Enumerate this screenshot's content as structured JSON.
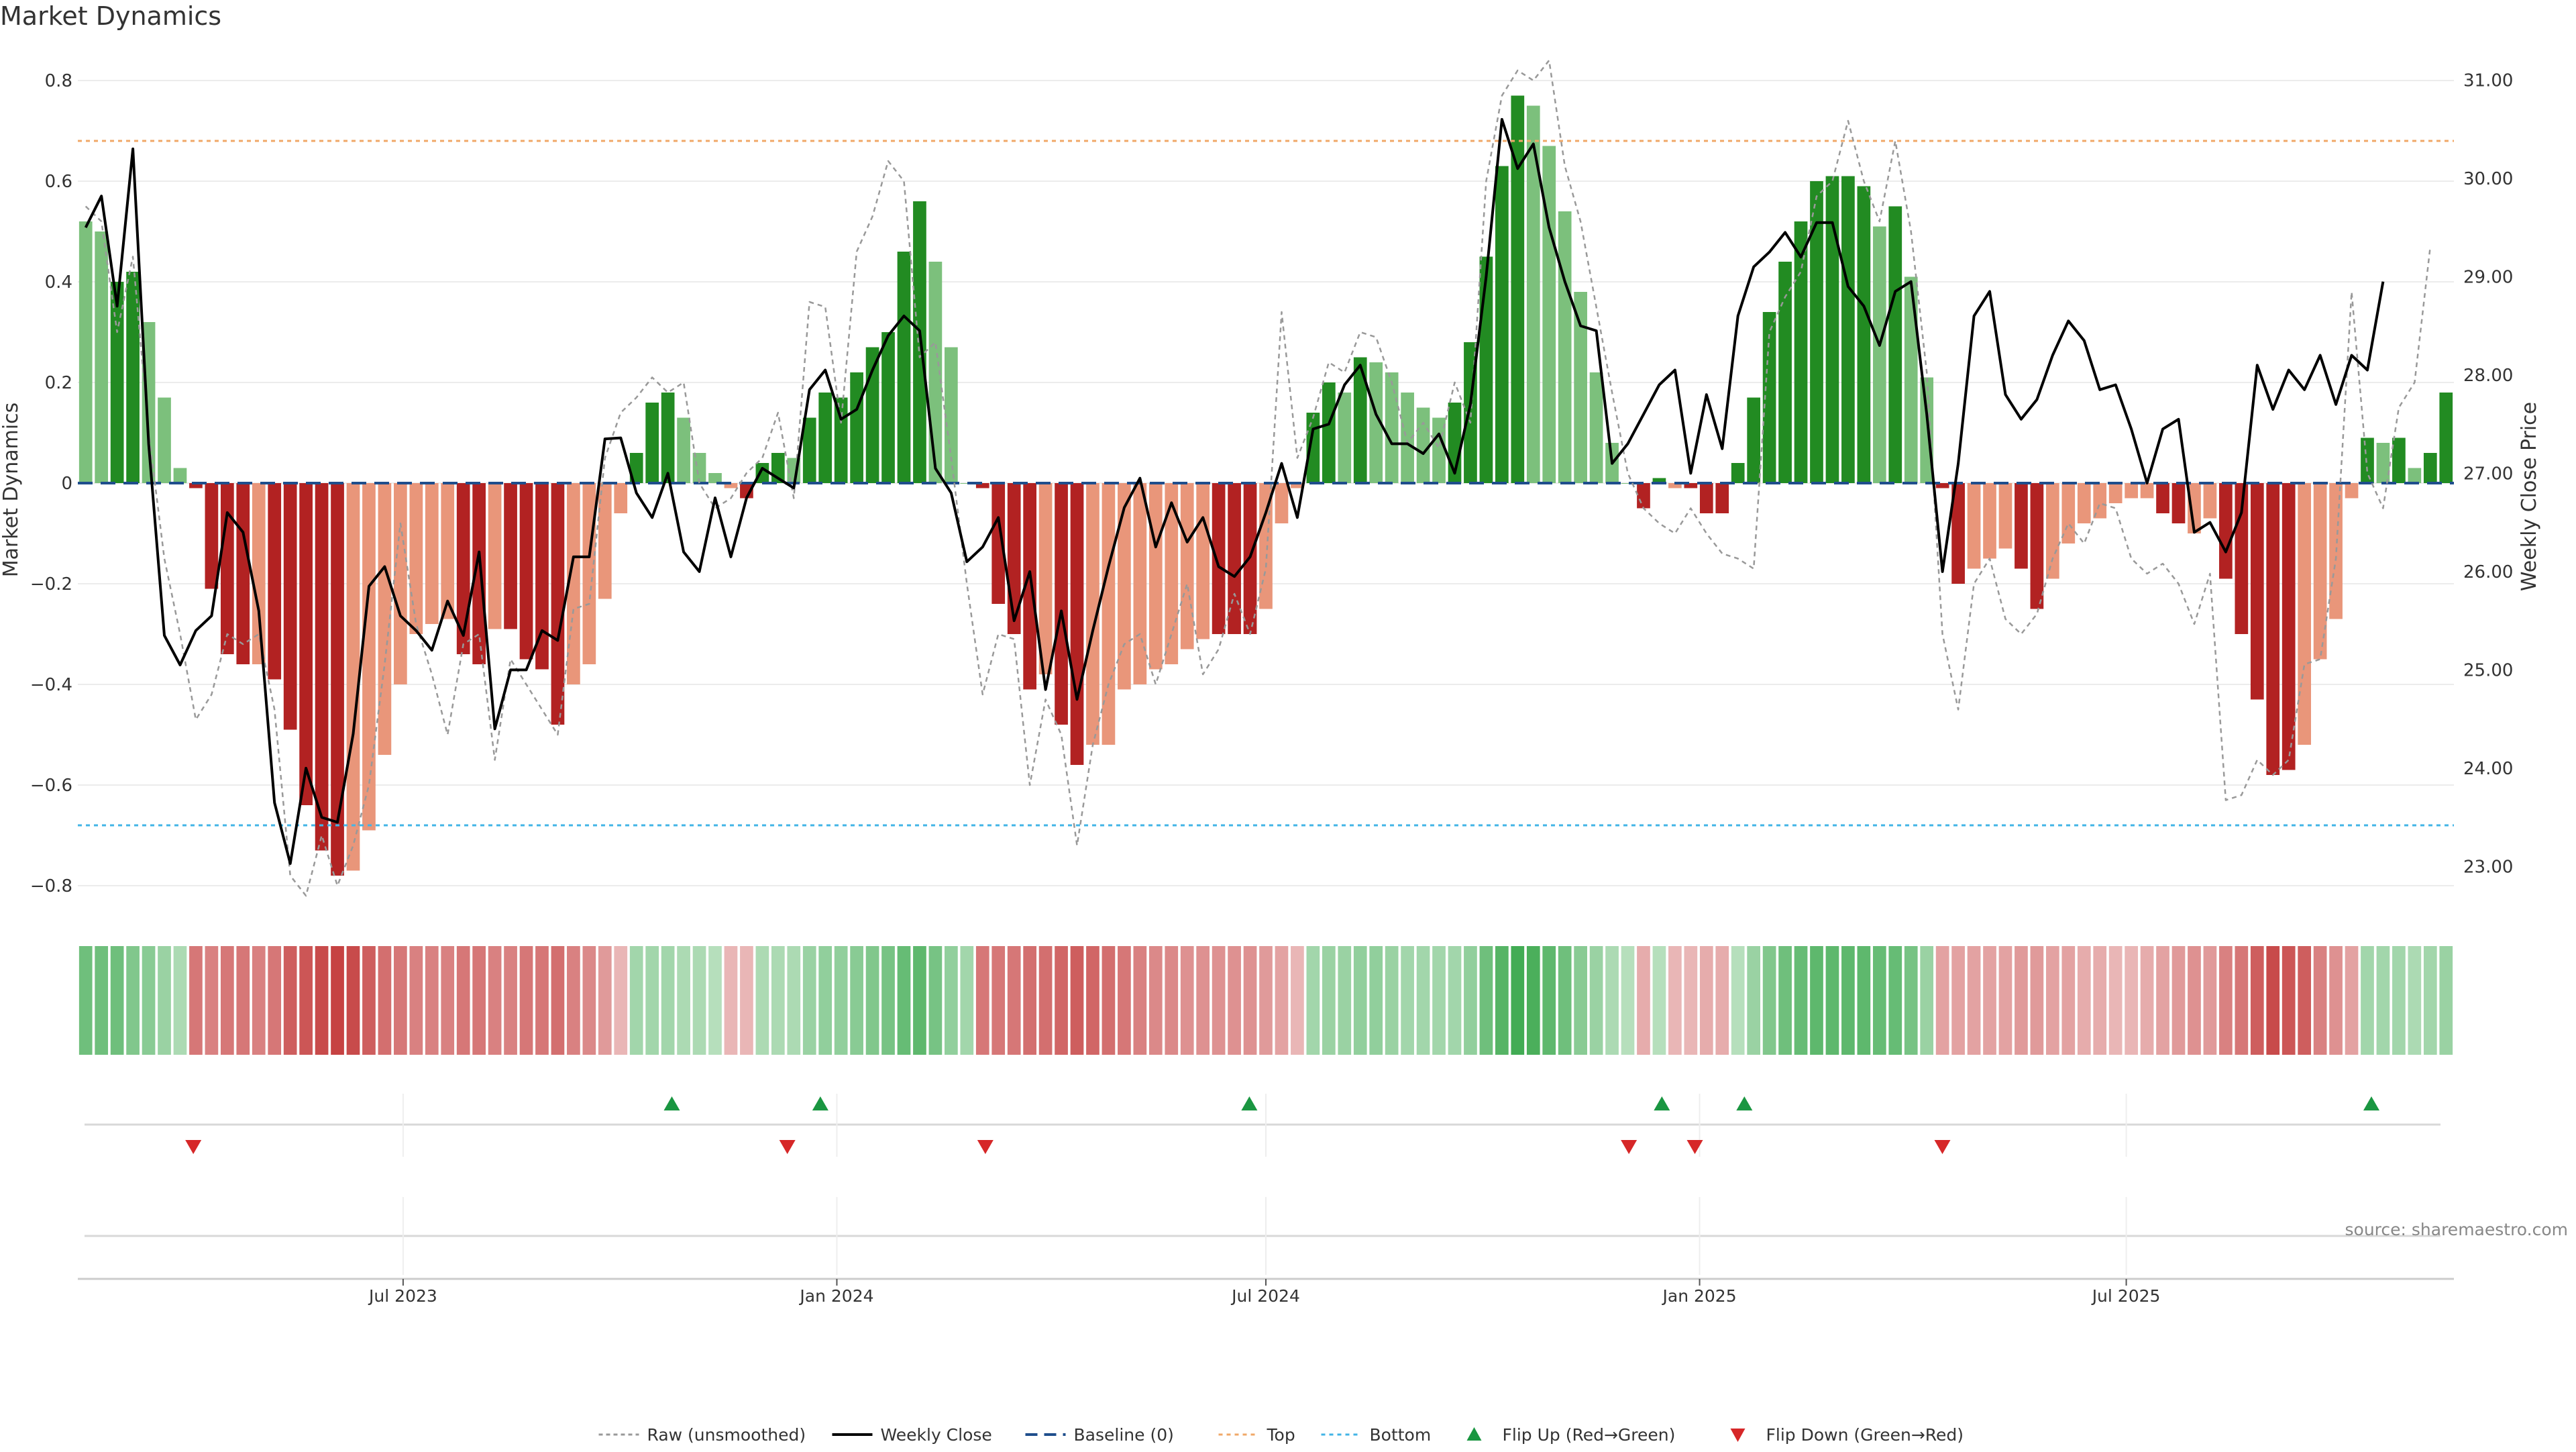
{
  "page": {
    "title": "Market Dynamics",
    "source": "source: sharemaestro.com"
  },
  "colors": {
    "strong_green": "#228b22",
    "light_green": "#7cc07c",
    "strong_red": "#b22222",
    "light_red": "#e9967a",
    "raw": "#999999",
    "close": "#000000",
    "baseline": "#1f4e8c",
    "top": "#f0a868",
    "bottom": "#42b4e6",
    "flip_up": "#1a9641",
    "flip_down": "#d62728",
    "grid": "#ececec"
  },
  "chart_data": {
    "type": "bar",
    "title": "Market Dynamics",
    "ylabel_left": "Market Dynamics",
    "ylabel_right": "Weekly Close Price",
    "ylim_left": [
      -0.84,
      0.84
    ],
    "ylim_right": [
      22.6,
      31.2
    ],
    "yticks_left": [
      -0.8,
      -0.6,
      -0.4,
      -0.2,
      0,
      0.2,
      0.4,
      0.6,
      0.8
    ],
    "yticks_left_labels": [
      "−0.8",
      "−0.6",
      "−0.4",
      "−0.2",
      "0",
      "0.2",
      "0.4",
      "0.6",
      "0.8"
    ],
    "yticks_right": [
      23,
      24,
      25,
      26,
      27,
      28,
      29,
      30,
      31
    ],
    "yticks_right_labels": [
      "23.00",
      "24.00",
      "25.00",
      "26.00",
      "27.00",
      "28.00",
      "29.00",
      "30.00",
      "31.00"
    ],
    "x_start": "2023-02-13",
    "x_end": "2025-11-17",
    "x_ticks": [
      {
        "date": "2023-07-01",
        "label": "Jul 2023"
      },
      {
        "date": "2024-01-01",
        "label": "Jan 2024"
      },
      {
        "date": "2024-07-01",
        "label": "Jul 2024"
      },
      {
        "date": "2025-01-01",
        "label": "Jan 2025"
      },
      {
        "date": "2025-07-01",
        "label": "Jul 2025"
      }
    ],
    "levels": {
      "baseline": 0,
      "top": 0.68,
      "bottom": -0.68
    },
    "grid": true,
    "legend_position": "bottom-center",
    "legend": [
      {
        "key": "raw",
        "label": "Raw (unsmoothed)"
      },
      {
        "key": "close",
        "label": "Weekly Close"
      },
      {
        "key": "baseline",
        "label": "Baseline (0)"
      },
      {
        "key": "top",
        "label": "Top"
      },
      {
        "key": "bottom",
        "label": "Bottom"
      },
      {
        "key": "flip_up",
        "label": "Flip Up (Red→Green)"
      },
      {
        "key": "flip_down",
        "label": "Flip Down (Green→Red)"
      }
    ],
    "series": [
      {
        "name": "Market Dynamics",
        "axis": "left",
        "values": [
          0.52,
          0.5,
          0.4,
          0.42,
          0.32,
          0.17,
          0.03,
          -0.01,
          -0.21,
          -0.34,
          -0.36,
          -0.36,
          -0.39,
          -0.49,
          -0.64,
          -0.73,
          -0.78,
          -0.77,
          -0.69,
          -0.54,
          -0.4,
          -0.3,
          -0.28,
          -0.27,
          -0.34,
          -0.36,
          -0.29,
          -0.29,
          -0.35,
          -0.37,
          -0.48,
          -0.4,
          -0.36,
          -0.23,
          -0.06,
          0.06,
          0.16,
          0.18,
          0.13,
          0.06,
          0.02,
          -0.01,
          -0.03,
          0.04,
          0.06,
          0.05,
          0.13,
          0.18,
          0.17,
          0.22,
          0.27,
          0.3,
          0.46,
          0.56,
          0.44,
          0.27,
          0.0,
          -0.01,
          -0.24,
          -0.3,
          -0.41,
          -0.38,
          -0.48,
          -0.56,
          -0.52,
          -0.52,
          -0.41,
          -0.4,
          -0.37,
          -0.36,
          -0.33,
          -0.31,
          -0.3,
          -0.3,
          -0.3,
          -0.25,
          -0.08,
          -0.01,
          0.14,
          0.2,
          0.18,
          0.25,
          0.24,
          0.22,
          0.18,
          0.15,
          0.13,
          0.16,
          0.28,
          0.45,
          0.63,
          0.77,
          0.75,
          0.67,
          0.54,
          0.38,
          0.22,
          0.08,
          0.0,
          -0.05,
          0.01,
          -0.01,
          -0.01,
          -0.06,
          -0.06,
          0.04,
          0.17,
          0.34,
          0.44,
          0.52,
          0.6,
          0.61,
          0.61,
          0.59,
          0.51,
          0.55,
          0.41,
          0.21,
          -0.01,
          -0.2,
          -0.17,
          -0.15,
          -0.13,
          -0.17,
          -0.25,
          -0.19,
          -0.12,
          -0.08,
          -0.07,
          -0.04,
          -0.03,
          -0.03,
          -0.06,
          -0.08,
          -0.1,
          -0.07,
          -0.19,
          -0.3,
          -0.43,
          -0.58,
          -0.57,
          -0.52,
          -0.35,
          -0.27,
          -0.03,
          0.09,
          0.08,
          0.09,
          0.03,
          0.06,
          0.18
        ],
        "categories": [
          "light_green",
          "light_green",
          "strong_green",
          "strong_green",
          "light_green",
          "light_green",
          "light_green",
          "strong_red",
          "strong_red",
          "strong_red",
          "strong_red",
          "light_red",
          "strong_red",
          "strong_red",
          "strong_red",
          "strong_red",
          "strong_red",
          "light_red",
          "light_red",
          "light_red",
          "light_red",
          "light_red",
          "light_red",
          "light_red",
          "strong_red",
          "strong_red",
          "light_red",
          "strong_red",
          "strong_red",
          "strong_red",
          "strong_red",
          "light_red",
          "light_red",
          "light_red",
          "light_red",
          "strong_green",
          "strong_green",
          "strong_green",
          "light_green",
          "light_green",
          "light_green",
          "light_red",
          "strong_red",
          "strong_green",
          "strong_green",
          "light_green",
          "strong_green",
          "strong_green",
          "strong_green",
          "strong_green",
          "strong_green",
          "strong_green",
          "strong_green",
          "strong_green",
          "light_green",
          "light_green",
          "light_green",
          "strong_red",
          "strong_red",
          "strong_red",
          "strong_red",
          "light_red",
          "strong_red",
          "strong_red",
          "light_red",
          "light_red",
          "light_red",
          "light_red",
          "light_red",
          "light_red",
          "light_red",
          "light_red",
          "strong_red",
          "strong_red",
          "strong_red",
          "light_red",
          "light_red",
          "light_red",
          "strong_green",
          "strong_green",
          "light_green",
          "strong_green",
          "light_green",
          "light_green",
          "light_green",
          "light_green",
          "light_green",
          "strong_green",
          "strong_green",
          "strong_green",
          "strong_green",
          "strong_green",
          "light_green",
          "light_green",
          "light_green",
          "light_green",
          "light_green",
          "light_green",
          "light_green",
          "strong_red",
          "strong_green",
          "light_red",
          "strong_red",
          "strong_red",
          "strong_red",
          "strong_green",
          "strong_green",
          "strong_green",
          "strong_green",
          "strong_green",
          "strong_green",
          "strong_green",
          "strong_green",
          "strong_green",
          "light_green",
          "strong_green",
          "light_green",
          "light_green",
          "strong_red",
          "strong_red",
          "light_red",
          "light_red",
          "light_red",
          "strong_red",
          "strong_red",
          "light_red",
          "light_red",
          "light_red",
          "light_red",
          "light_red",
          "light_red",
          "light_red",
          "strong_red",
          "strong_red",
          "light_red",
          "light_red",
          "strong_red",
          "strong_red",
          "strong_red",
          "strong_red",
          "strong_red",
          "light_red",
          "light_red",
          "light_red",
          "light_red",
          "strong_green",
          "light_green",
          "strong_green",
          "light_green",
          "strong_green",
          "strong_green"
        ]
      },
      {
        "name": "Raw (unsmoothed)",
        "axis": "left",
        "values": [
          0.55,
          0.52,
          0.3,
          0.45,
          0.1,
          -0.15,
          -0.3,
          -0.47,
          -0.42,
          -0.3,
          -0.32,
          -0.3,
          -0.45,
          -0.78,
          -0.82,
          -0.7,
          -0.8,
          -0.72,
          -0.6,
          -0.36,
          -0.08,
          -0.28,
          -0.38,
          -0.5,
          -0.32,
          -0.3,
          -0.55,
          -0.35,
          -0.4,
          -0.45,
          -0.5,
          -0.25,
          -0.24,
          0.05,
          0.14,
          0.17,
          0.21,
          0.18,
          0.2,
          0.0,
          -0.05,
          -0.03,
          0.02,
          0.05,
          0.14,
          -0.03,
          0.36,
          0.35,
          0.12,
          0.46,
          0.53,
          0.64,
          0.6,
          0.25,
          0.28,
          0.05,
          -0.2,
          -0.42,
          -0.3,
          -0.31,
          -0.6,
          -0.43,
          -0.5,
          -0.72,
          -0.52,
          -0.4,
          -0.32,
          -0.3,
          -0.4,
          -0.3,
          -0.2,
          -0.38,
          -0.33,
          -0.22,
          -0.3,
          -0.17,
          0.34,
          0.05,
          0.13,
          0.24,
          0.22,
          0.3,
          0.29,
          0.2,
          0.08,
          0.12,
          0.07,
          0.2,
          0.12,
          0.6,
          0.77,
          0.82,
          0.8,
          0.84,
          0.63,
          0.52,
          0.35,
          0.18,
          0.02,
          -0.05,
          -0.08,
          -0.1,
          -0.05,
          -0.1,
          -0.14,
          -0.15,
          -0.17,
          0.3,
          0.37,
          0.42,
          0.57,
          0.6,
          0.72,
          0.6,
          0.52,
          0.68,
          0.5,
          0.22,
          -0.3,
          -0.45,
          -0.2,
          -0.15,
          -0.27,
          -0.3,
          -0.26,
          -0.15,
          -0.08,
          -0.12,
          -0.04,
          -0.05,
          -0.15,
          -0.18,
          -0.16,
          -0.2,
          -0.28,
          -0.18,
          -0.63,
          -0.62,
          -0.55,
          -0.58,
          -0.55,
          -0.36,
          -0.35,
          -0.15,
          0.38,
          0.02,
          -0.05,
          0.15,
          0.2,
          0.47
        ]
      },
      {
        "name": "Weekly Close",
        "axis": "right",
        "values": [
          29.5,
          29.82,
          28.7,
          30.3,
          27.3,
          25.35,
          25.05,
          25.4,
          25.55,
          26.6,
          26.4,
          25.6,
          23.65,
          23.03,
          24.0,
          23.5,
          23.45,
          24.35,
          25.85,
          26.05,
          25.55,
          25.4,
          25.2,
          25.7,
          25.35,
          26.2,
          24.4,
          25.0,
          25.0,
          25.4,
          25.3,
          26.15,
          26.15,
          27.35,
          27.36,
          26.8,
          26.55,
          27.0,
          26.2,
          26.0,
          26.75,
          26.15,
          26.75,
          27.05,
          26.95,
          26.85,
          27.85,
          28.05,
          27.55,
          27.65,
          28.05,
          28.4,
          28.6,
          28.45,
          27.05,
          26.8,
          26.1,
          26.25,
          26.55,
          25.5,
          26.0,
          24.8,
          25.6,
          24.7,
          25.4,
          26.05,
          26.65,
          26.95,
          26.25,
          26.7,
          26.3,
          26.55,
          26.05,
          25.95,
          26.15,
          26.6,
          27.1,
          26.55,
          27.45,
          27.5,
          27.9,
          28.1,
          27.6,
          27.3,
          27.3,
          27.2,
          27.4,
          27.0,
          27.7,
          29.0,
          30.6,
          30.1,
          30.35,
          29.5,
          28.95,
          28.5,
          28.45,
          27.1,
          27.3,
          27.6,
          27.9,
          28.05,
          27.0,
          27.8,
          27.25,
          28.6,
          29.1,
          29.25,
          29.45,
          29.2,
          29.55,
          29.55,
          28.9,
          28.7,
          28.3,
          28.85,
          28.95,
          27.6,
          26.0,
          27.1,
          28.6,
          28.85,
          27.8,
          27.55,
          27.75,
          28.2,
          28.55,
          28.35,
          27.85,
          27.9,
          27.45,
          26.9,
          27.45,
          27.55,
          26.4,
          26.5,
          26.2,
          26.6,
          28.1,
          27.65,
          28.05,
          27.85,
          28.2,
          27.7,
          28.2,
          28.05,
          28.95
        ]
      }
    ],
    "regime_strip": [
      0.6,
      0.6,
      0.6,
      0.5,
      0.45,
      0.35,
      0.25,
      -0.55,
      -0.5,
      -0.55,
      -0.55,
      -0.5,
      -0.55,
      -0.7,
      -0.75,
      -0.8,
      -0.85,
      -0.8,
      -0.7,
      -0.6,
      -0.55,
      -0.5,
      -0.5,
      -0.5,
      -0.55,
      -0.55,
      -0.5,
      -0.5,
      -0.55,
      -0.55,
      -0.6,
      -0.5,
      -0.45,
      -0.35,
      -0.2,
      0.3,
      0.3,
      0.3,
      0.25,
      0.25,
      0.2,
      -0.2,
      -0.2,
      0.25,
      0.25,
      0.25,
      0.35,
      0.4,
      0.4,
      0.45,
      0.5,
      0.55,
      0.65,
      0.7,
      0.55,
      0.4,
      0.3,
      -0.55,
      -0.55,
      -0.55,
      -0.6,
      -0.6,
      -0.65,
      -0.7,
      -0.65,
      -0.6,
      -0.55,
      -0.5,
      -0.45,
      -0.45,
      -0.4,
      -0.4,
      -0.4,
      -0.4,
      -0.4,
      -0.35,
      -0.3,
      -0.2,
      0.3,
      0.35,
      0.35,
      0.4,
      0.4,
      0.35,
      0.3,
      0.3,
      0.3,
      0.3,
      0.4,
      0.6,
      0.75,
      0.85,
      0.8,
      0.7,
      0.6,
      0.45,
      0.35,
      0.25,
      0.2,
      -0.25,
      0.2,
      -0.2,
      -0.2,
      -0.25,
      -0.25,
      0.2,
      0.35,
      0.5,
      0.6,
      0.65,
      0.7,
      0.7,
      0.7,
      0.7,
      0.65,
      0.65,
      0.55,
      0.35,
      -0.3,
      -0.3,
      -0.3,
      -0.3,
      -0.3,
      -0.35,
      -0.35,
      -0.3,
      -0.3,
      -0.25,
      -0.25,
      -0.2,
      -0.2,
      -0.25,
      -0.3,
      -0.35,
      -0.4,
      -0.35,
      -0.5,
      -0.55,
      -0.7,
      -0.8,
      -0.75,
      -0.7,
      -0.5,
      -0.4,
      -0.3,
      0.3,
      0.3,
      0.3,
      0.25,
      0.3,
      0.35
    ],
    "flips_up": [
      "2023-10-23",
      "2023-12-25",
      "2024-06-24",
      "2024-12-16",
      "2025-01-20",
      "2025-10-13"
    ],
    "flips_down": [
      "2023-04-03",
      "2023-12-11",
      "2024-03-04",
      "2024-12-02",
      "2024-12-30",
      "2025-04-14"
    ]
  }
}
